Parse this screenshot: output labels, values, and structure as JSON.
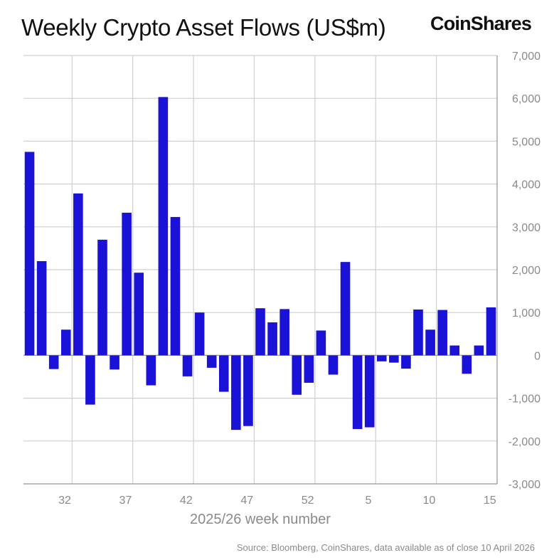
{
  "title": "Weekly Crypto Asset Flows (US$m)",
  "brand": "CoinShares",
  "source": "Source: Bloomberg, CoinShares, data available as of close 10 April 2026",
  "colors": {
    "bar": "#1a12d6",
    "grid": "#cfcfcf",
    "axis": "#9a9a9a",
    "text": "#8a8a8a"
  },
  "chart_data": {
    "type": "bar",
    "title": "Weekly Crypto Asset Flows (US$m)",
    "xlabel": "2025/26 week number",
    "ylabel": "",
    "ylim": [
      -3000,
      7000
    ],
    "yticks": [
      7000,
      6000,
      5000,
      4000,
      3000,
      2000,
      1000,
      0,
      -1000,
      -2000,
      -3000
    ],
    "ytick_labels": [
      "7,000",
      "6,000",
      "5,000",
      "4,000",
      "3,000",
      "2,000",
      "1,000",
      "0",
      "-1,000",
      "-2,000",
      "-3,000"
    ],
    "y_axis_position": "right",
    "grid": true,
    "categories": [
      "29",
      "30",
      "31",
      "32",
      "33",
      "34",
      "35",
      "36",
      "37",
      "38",
      "39",
      "40",
      "41",
      "42",
      "43",
      "44",
      "45",
      "46",
      "47",
      "48",
      "49",
      "50",
      "51",
      "52",
      "1",
      "2",
      "3",
      "4",
      "5",
      "6",
      "7",
      "8",
      "9",
      "10",
      "11",
      "12",
      "13",
      "14",
      "15"
    ],
    "xtick_labels": [
      {
        "index": 3,
        "label": "32"
      },
      {
        "index": 8,
        "label": "37"
      },
      {
        "index": 13,
        "label": "42"
      },
      {
        "index": 18,
        "label": "47"
      },
      {
        "index": 23,
        "label": "52"
      },
      {
        "index": 28,
        "label": "5"
      },
      {
        "index": 33,
        "label": "10"
      },
      {
        "index": 38,
        "label": "15"
      }
    ],
    "values": [
      4750,
      2200,
      -320,
      600,
      3780,
      -1150,
      2700,
      -330,
      3330,
      1930,
      -700,
      6030,
      3230,
      -490,
      1000,
      -290,
      -850,
      -1740,
      -1650,
      1100,
      770,
      1080,
      -920,
      -640,
      580,
      -450,
      2180,
      -1720,
      -1680,
      -140,
      -170,
      -310,
      1070,
      600,
      1060,
      230,
      -430,
      230,
      1120
    ]
  }
}
